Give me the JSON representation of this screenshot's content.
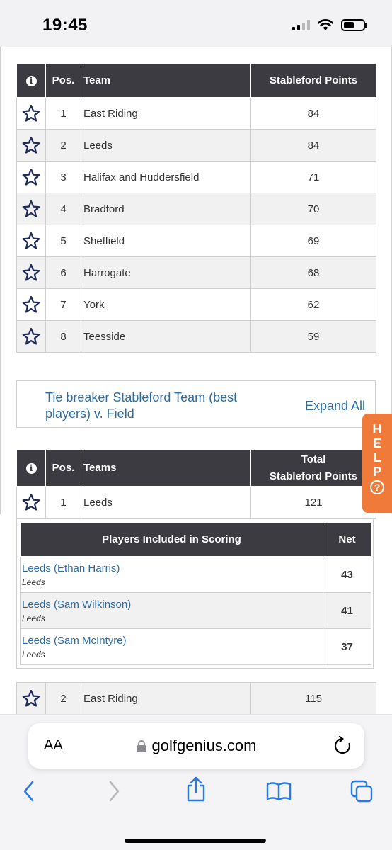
{
  "status_bar": {
    "time": "19:45"
  },
  "table1": {
    "headers": {
      "info": "i",
      "pos": "Pos.",
      "team": "Team",
      "points": "Stableford Points"
    },
    "rows": [
      {
        "pos": "1",
        "team": "East Riding",
        "points": "84"
      },
      {
        "pos": "2",
        "team": "Leeds",
        "points": "84"
      },
      {
        "pos": "3",
        "team": "Halifax and Huddersfield",
        "points": "71"
      },
      {
        "pos": "4",
        "team": "Bradford",
        "points": "70"
      },
      {
        "pos": "5",
        "team": "Sheffield",
        "points": "69"
      },
      {
        "pos": "6",
        "team": "Harrogate",
        "points": "68"
      },
      {
        "pos": "7",
        "team": "York",
        "points": "62"
      },
      {
        "pos": "8",
        "team": "Teesside",
        "points": "59"
      }
    ]
  },
  "tie_breaker": {
    "title": "Tie breaker Stableford Team (best players) v. Field",
    "expand_label": "Expand All"
  },
  "help_tab": {
    "letters": [
      "H",
      "E",
      "L",
      "P"
    ],
    "question": "?"
  },
  "table2": {
    "headers": {
      "info": "i",
      "pos": "Pos.",
      "team": "Teams",
      "points_line1": "Total",
      "points_line2": "Stableford Points"
    },
    "rows": [
      {
        "pos": "1",
        "team": "Leeds",
        "points": "121"
      },
      {
        "pos": "2",
        "team": "East Riding",
        "points": "115"
      }
    ]
  },
  "players_table": {
    "headers": {
      "players": "Players Included in Scoring",
      "net": "Net"
    },
    "rows": [
      {
        "name": "Leeds (Ethan Harris)",
        "team": "Leeds",
        "net": "43"
      },
      {
        "name": "Leeds (Sam Wilkinson)",
        "team": "Leeds",
        "net": "41"
      },
      {
        "name": "Leeds (Sam McIntyre)",
        "team": "Leeds",
        "net": "37"
      }
    ]
  },
  "browser": {
    "aa_label": "AA",
    "url": "golfgenius.com"
  },
  "colors": {
    "header_bg": "#3c3b41",
    "link": "#2e6da4",
    "help_tab": "#f07a3a",
    "star": "#1e2a5a"
  }
}
